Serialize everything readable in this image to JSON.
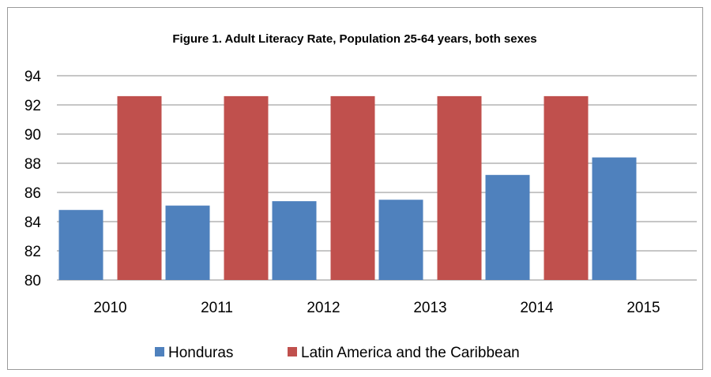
{
  "chart_data": {
    "type": "bar",
    "title": "Figure 1. Adult Literacy Rate, Population 25-64 years, both sexes",
    "xlabel": "",
    "ylabel": "",
    "categories": [
      "2010",
      "2011",
      "2012",
      "2013",
      "2014",
      "2015"
    ],
    "series": [
      {
        "name": "Honduras",
        "color": "#4f81bd",
        "values": [
          84.8,
          85.1,
          85.4,
          85.5,
          87.2,
          88.4
        ]
      },
      {
        "name": "Latin America and the Caribbean",
        "color": "#c0504d",
        "values": [
          92.6,
          92.6,
          92.6,
          92.6,
          92.6,
          null
        ]
      }
    ],
    "ylim": [
      80,
      94
    ],
    "yticks": [
      "80",
      "82",
      "84",
      "86",
      "88",
      "90",
      "92",
      "94"
    ],
    "grid": true,
    "legend_position": "bottom"
  }
}
